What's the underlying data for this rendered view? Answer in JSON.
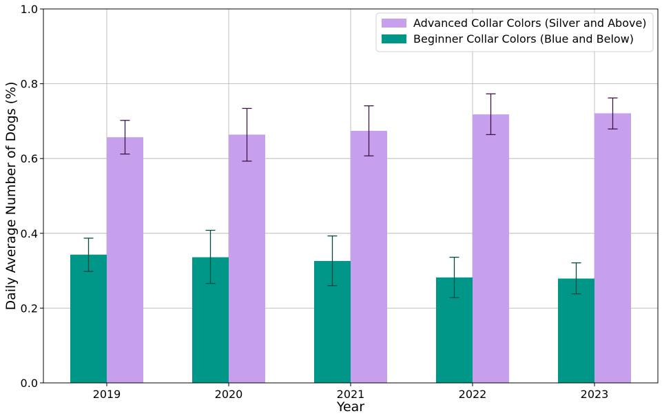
{
  "chart_data": {
    "type": "bar",
    "title": "",
    "xlabel": "Year",
    "ylabel": "Daily Average Number of Dogs (%)",
    "categories": [
      "2019",
      "2020",
      "2021",
      "2022",
      "2023"
    ],
    "ylim": [
      0,
      1.0
    ],
    "yticks": [
      "0.0",
      "0.2",
      "0.4",
      "0.6",
      "0.8",
      "1.0"
    ],
    "grid": true,
    "legend_position": "top-right",
    "series": [
      {
        "name": "Beginner Collar Colors (Blue and Below)",
        "color": "#009688",
        "error_color": "#004d40",
        "values": [
          0.343,
          0.336,
          0.326,
          0.282,
          0.279
        ],
        "err_low": [
          0.298,
          0.266,
          0.26,
          0.228,
          0.238
        ],
        "err_high": [
          0.387,
          0.408,
          0.393,
          0.336,
          0.321
        ]
      },
      {
        "name": "Advanced Collar Colors (Silver and Above)",
        "color": "#c7a0ed",
        "error_color": "#3d1446",
        "values": [
          0.657,
          0.664,
          0.674,
          0.718,
          0.721
        ],
        "err_low": [
          0.612,
          0.593,
          0.607,
          0.664,
          0.679
        ],
        "err_high": [
          0.702,
          0.734,
          0.741,
          0.773,
          0.762
        ]
      }
    ],
    "legend_order": [
      1,
      0
    ]
  }
}
